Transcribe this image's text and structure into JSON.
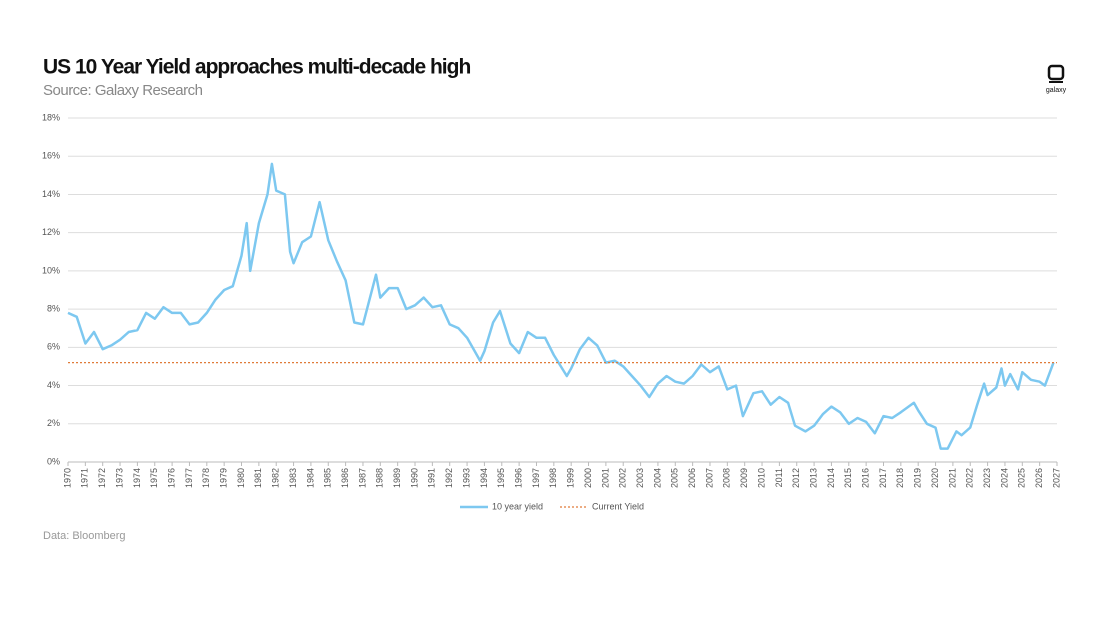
{
  "chart_data": {
    "type": "line",
    "title": "US 10 Year Yield approaches multi-decade high",
    "subtitle": "Source: Galaxy Research",
    "footer": "Data: Bloomberg",
    "logo_text": "galaxy",
    "x": [
      1970,
      1970.5,
      1971,
      1971.5,
      1972,
      1972.5,
      1973,
      1973.5,
      1974,
      1974.5,
      1975,
      1975.5,
      1976,
      1976.5,
      1977,
      1977.5,
      1978,
      1978.5,
      1979,
      1979.5,
      1980,
      1980.3,
      1980.5,
      1981,
      1981.5,
      1981.75,
      1982,
      1982.5,
      1982.8,
      1983,
      1983.5,
      1984,
      1984.5,
      1985,
      1985.5,
      1986,
      1986.5,
      1987,
      1987.75,
      1988,
      1988.5,
      1989,
      1989.5,
      1990,
      1990.5,
      1991,
      1991.5,
      1992,
      1992.5,
      1993,
      1993.75,
      1994,
      1994.5,
      1994.9,
      1995.5,
      1996,
      1996.5,
      1997,
      1997.5,
      1998,
      1998.75,
      1999,
      1999.5,
      2000,
      2000.5,
      2001,
      2001.5,
      2002,
      2002.5,
      2003,
      2003.5,
      2004,
      2004.5,
      2005,
      2005.5,
      2006,
      2006.5,
      2007,
      2007.5,
      2008,
      2008.5,
      2008.9,
      2009.5,
      2010,
      2010.5,
      2011,
      2011.5,
      2011.9,
      2012.5,
      2013,
      2013.5,
      2014,
      2014.5,
      2015,
      2015.5,
      2016,
      2016.5,
      2017,
      2017.5,
      2018,
      2018.75,
      2019,
      2019.5,
      2020,
      2020.3,
      2020.7,
      2021.2,
      2021.5,
      2022,
      2022.4,
      2022.8,
      2023,
      2023.5,
      2023.8,
      2024,
      2024.3,
      2024.75,
      2025,
      2025.5,
      2026,
      2026.3,
      2026.8
    ],
    "series": [
      {
        "name": "10 year yield",
        "color": "#7dc8f0",
        "values": [
          7.8,
          7.6,
          6.2,
          6.8,
          5.9,
          6.1,
          6.4,
          6.8,
          6.9,
          7.8,
          7.5,
          8.1,
          7.8,
          7.8,
          7.2,
          7.3,
          7.8,
          8.5,
          9.0,
          9.2,
          10.8,
          12.5,
          10.0,
          12.5,
          14.0,
          15.6,
          14.2,
          14.0,
          11.0,
          10.4,
          11.5,
          11.8,
          13.6,
          11.6,
          10.5,
          9.5,
          7.3,
          7.2,
          9.8,
          8.6,
          9.1,
          9.1,
          8.0,
          8.2,
          8.6,
          8.1,
          8.2,
          7.2,
          7.0,
          6.5,
          5.3,
          5.8,
          7.3,
          7.9,
          6.2,
          5.7,
          6.8,
          6.5,
          6.5,
          5.6,
          4.5,
          4.9,
          5.9,
          6.5,
          6.1,
          5.2,
          5.3,
          5.0,
          4.5,
          4.0,
          3.4,
          4.1,
          4.5,
          4.2,
          4.1,
          4.5,
          5.1,
          4.7,
          5.0,
          3.8,
          4.0,
          2.4,
          3.6,
          3.7,
          3.0,
          3.4,
          3.1,
          1.9,
          1.6,
          1.9,
          2.5,
          2.9,
          2.6,
          2.0,
          2.3,
          2.1,
          1.5,
          2.4,
          2.3,
          2.6,
          3.1,
          2.7,
          2.0,
          1.8,
          0.7,
          0.7,
          1.6,
          1.4,
          1.8,
          3.0,
          4.1,
          3.5,
          3.9,
          4.9,
          4.0,
          4.6,
          3.8,
          4.7,
          4.3,
          4.2,
          4.0,
          5.2
        ]
      }
    ],
    "reference_line": {
      "name": "Current Yield",
      "value": 5.2,
      "color": "#e07b39"
    },
    "xlim": [
      1970,
      2027
    ],
    "xticks": [
      1970,
      1971,
      1972,
      1973,
      1974,
      1975,
      1976,
      1977,
      1978,
      1979,
      1980,
      1981,
      1982,
      1983,
      1984,
      1985,
      1986,
      1987,
      1988,
      1989,
      1990,
      1991,
      1992,
      1993,
      1994,
      1995,
      1996,
      1997,
      1998,
      1999,
      2000,
      2001,
      2002,
      2003,
      2004,
      2005,
      2006,
      2007,
      2008,
      2009,
      2010,
      2011,
      2012,
      2013,
      2014,
      2015,
      2016,
      2017,
      2018,
      2019,
      2020,
      2021,
      2022,
      2023,
      2024,
      2025,
      2026,
      2027
    ],
    "ylim": [
      0,
      18
    ],
    "yticks": [
      {
        "value": 0,
        "label": "0%"
      },
      {
        "value": 2,
        "label": "2%"
      },
      {
        "value": 4,
        "label": "4%"
      },
      {
        "value": 6,
        "label": "6%"
      },
      {
        "value": 8,
        "label": "8%"
      },
      {
        "value": 10,
        "label": "10%"
      },
      {
        "value": 12,
        "label": "12%"
      },
      {
        "value": 14,
        "label": "14%"
      },
      {
        "value": 16,
        "label": "16%"
      },
      {
        "value": 18,
        "label": "18%"
      }
    ],
    "grid": true
  }
}
